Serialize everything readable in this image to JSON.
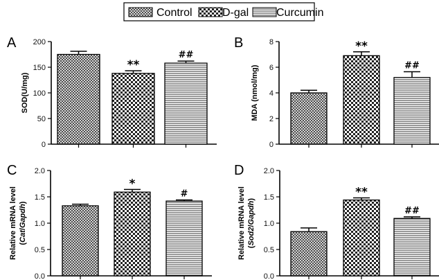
{
  "legend": {
    "entries": [
      {
        "label": "Control",
        "pattern": "crosshatch"
      },
      {
        "label": "D-gal",
        "pattern": "checker"
      },
      {
        "label": "Curcumin",
        "pattern": "horizontal"
      }
    ]
  },
  "chart_data": [
    {
      "type": "bar",
      "panel": "A",
      "categories": [
        "Control",
        "D-gal",
        "Curcumin"
      ],
      "values": [
        175,
        138,
        158
      ],
      "errors": [
        6,
        5,
        4
      ],
      "ylabel": "SOD(U/mg)",
      "ylabel_parts": [
        {
          "text": "SOD(U/mg)",
          "italic": false
        }
      ],
      "ylim": [
        0,
        200
      ],
      "yticks": [
        0,
        50,
        100,
        150,
        200
      ],
      "tick_labels": [
        "0",
        "50",
        "100",
        "150",
        "200"
      ],
      "annotations": [
        "",
        "**",
        "##"
      ]
    },
    {
      "type": "bar",
      "panel": "B",
      "categories": [
        "Control",
        "D-gal",
        "Curcumin"
      ],
      "values": [
        4.0,
        6.9,
        5.2
      ],
      "errors": [
        0.2,
        0.3,
        0.45
      ],
      "ylabel": "MDA (nmol/mg)",
      "ylabel_parts": [
        {
          "text": "MDA (nmol/mg)",
          "italic": false
        }
      ],
      "ylim": [
        0,
        8
      ],
      "yticks": [
        0,
        2,
        4,
        6,
        8
      ],
      "tick_labels": [
        "0",
        "2",
        "4",
        "6",
        "8"
      ],
      "annotations": [
        "",
        "**",
        "##"
      ]
    },
    {
      "type": "bar",
      "panel": "C",
      "categories": [
        "Control",
        "D-gal",
        "Curcumin"
      ],
      "values": [
        1.33,
        1.59,
        1.42
      ],
      "errors": [
        0.03,
        0.05,
        0.02
      ],
      "ylabel": "Relative mRNA level (Cat/Gapdh)",
      "ylabel_line1": "Relative mRNA level",
      "ylabel_parts": [
        {
          "text": "(",
          "italic": false
        },
        {
          "text": "Cat",
          "italic": true
        },
        {
          "text": "/",
          "italic": false
        },
        {
          "text": "Gapdh",
          "italic": true
        },
        {
          "text": ")",
          "italic": false
        }
      ],
      "ylim": [
        0,
        2.0
      ],
      "yticks": [
        0,
        0.5,
        1.0,
        1.5,
        2.0
      ],
      "tick_labels": [
        "0.0",
        "0.5",
        "1.0",
        "1.5",
        "2.0"
      ],
      "annotations": [
        "",
        "*",
        "#"
      ]
    },
    {
      "type": "bar",
      "panel": "D",
      "categories": [
        "Control",
        "D-gal",
        "Curcumin"
      ],
      "values": [
        0.84,
        1.44,
        1.09
      ],
      "errors": [
        0.07,
        0.04,
        0.03
      ],
      "ylabel": "Relative mRNA level (Sod2/Gapdh)",
      "ylabel_line1": "Relative mRNA level",
      "ylabel_parts": [
        {
          "text": "(",
          "italic": false
        },
        {
          "text": "Sod2",
          "italic": true
        },
        {
          "text": "/",
          "italic": false
        },
        {
          "text": "Gapdh",
          "italic": true
        },
        {
          "text": ")",
          "italic": false
        }
      ],
      "ylim": [
        0,
        2.0
      ],
      "yticks": [
        0,
        0.5,
        1.0,
        1.5,
        2.0
      ],
      "tick_labels": [
        "0.0",
        "0.5",
        "1.0",
        "1.5",
        "2.0"
      ],
      "annotations": [
        "",
        "**",
        "##"
      ]
    }
  ]
}
